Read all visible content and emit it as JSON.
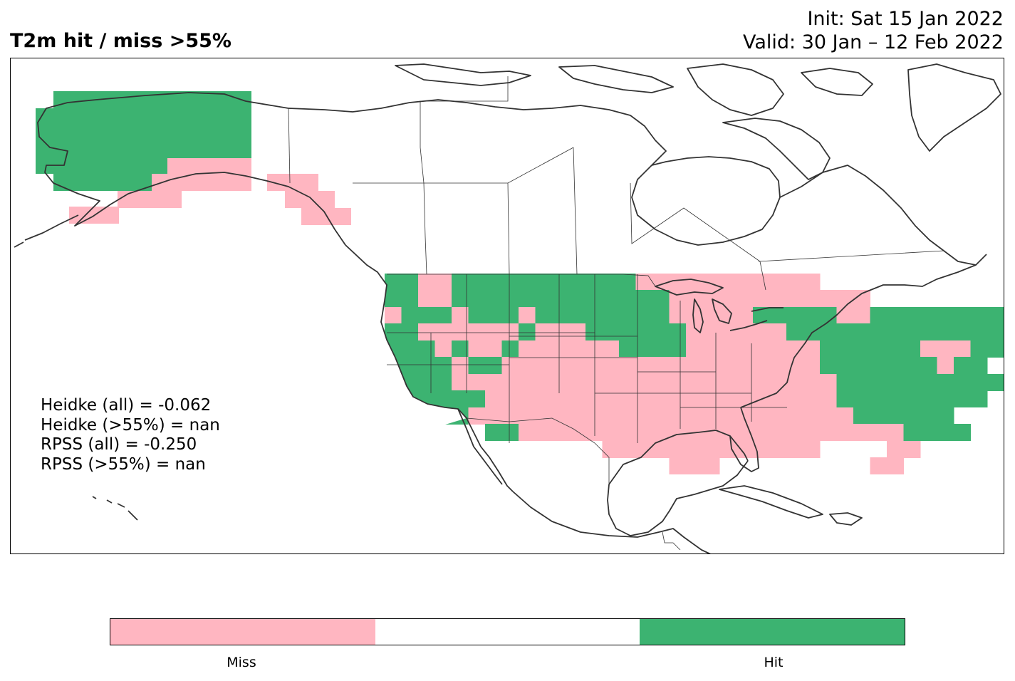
{
  "title": "T2m hit / miss  >55%",
  "init_line": "Init: Sat 15 Jan 2022",
  "valid_line": "Valid: 30 Jan – 12 Feb 2022",
  "scores": {
    "heidke_all": "Heidke (all) = -0.062",
    "heidke_55": "Heidke (>55%) = nan",
    "rpss_all": "RPSS (all) = -0.250",
    "rpss_55": "RPSS (>55%) = nan"
  },
  "colors": {
    "miss": "#ffb6c1",
    "neutral": "#ffffff",
    "hit": "#3cb371",
    "coast": "#333333"
  },
  "colorbar": {
    "labels": [
      "Miss",
      "Hit"
    ]
  },
  "legend": [
    {
      "value": "miss",
      "label": "Miss"
    },
    {
      "value": "hit",
      "label": "Hit"
    }
  ]
}
